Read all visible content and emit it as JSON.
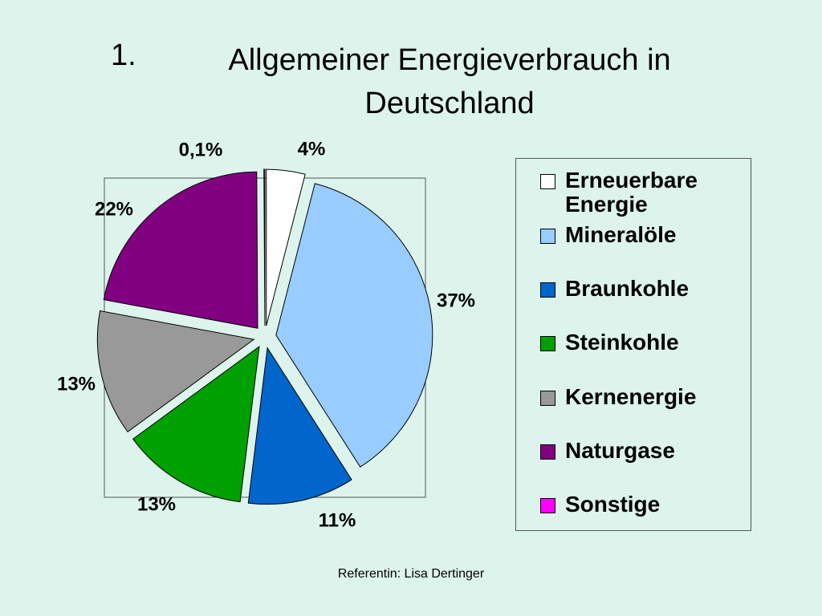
{
  "number": "1.",
  "chart_data": {
    "type": "pie",
    "title": "Allgemeiner Energieverbrauch in Deutschland",
    "categories": [
      "Erneuerbare Energie",
      "Mineralöle",
      "Braunkohle",
      "Steinkohle",
      "Kernenergie",
      "Naturgase",
      "Sonstige"
    ],
    "values": [
      4,
      37,
      11,
      13,
      13,
      22,
      0.1
    ],
    "value_labels": [
      "4%",
      "37%",
      "11%",
      "13%",
      "13%",
      "22%",
      "0,1%"
    ],
    "colors": [
      "#ffffff",
      "#99ccff",
      "#0066cc",
      "#00a000",
      "#999999",
      "#800080",
      "#ff00ff"
    ]
  },
  "footer": "Referentin: Lisa Dertinger"
}
